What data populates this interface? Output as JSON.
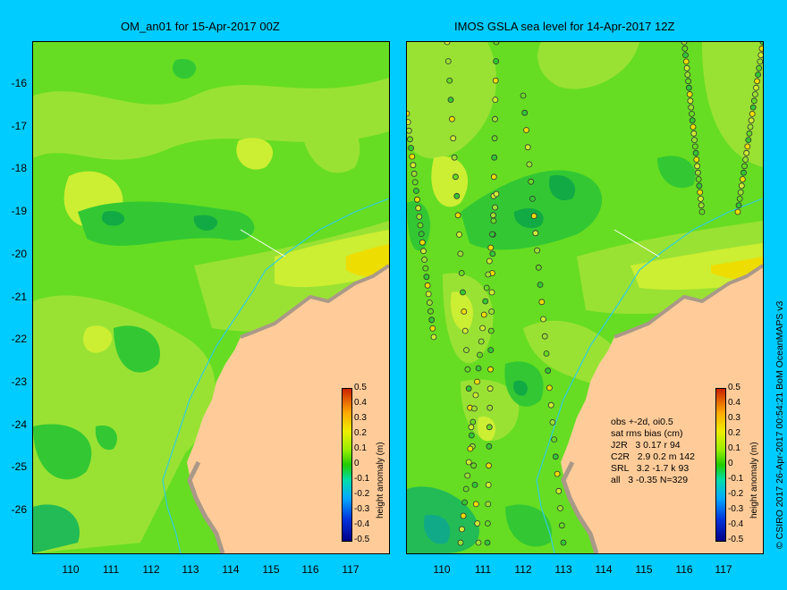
{
  "left_panel": {
    "title": "OM_an01 for 15-Apr-2017 00Z"
  },
  "right_panel": {
    "title": "IMOS GSLA sea level  for 14-Apr-2017 12Z"
  },
  "y_ticks": [
    "-16",
    "-17",
    "-18",
    "-19",
    "-20",
    "-21",
    "-22",
    "-23",
    "-24",
    "-25",
    "-26"
  ],
  "x_ticks": [
    "110",
    "111",
    "112",
    "113",
    "114",
    "115",
    "116",
    "117"
  ],
  "colorbar": {
    "title": "height anomaly (m)",
    "labels": [
      "0.5",
      "0.4",
      "0.3",
      "0.2",
      "0.1",
      "0",
      "-0.1",
      "-0.2",
      "-0.3",
      "-0.4",
      "-0.5"
    ]
  },
  "stats": {
    "line1": "obs +-2d, oi0.5",
    "line2": "sat rms bias (cm)",
    "line3": "J2R   3 0.17 r 94",
    "line4": "C2R   2.9 0.2 m 142",
    "line5": "SRL   3.2 -1.7 k 93",
    "line6": "all   3 -0.35 N=329"
  },
  "credit": "© CSIRO 2017  26-Apr-2017 00:54:21 BoM OceanMAPS v3",
  "colors": {
    "background": "#00ccff",
    "land": "#ffcc99",
    "ocean_base": "#66dd22",
    "coast": "#aa9988",
    "shelf": "#33ccdd"
  }
}
